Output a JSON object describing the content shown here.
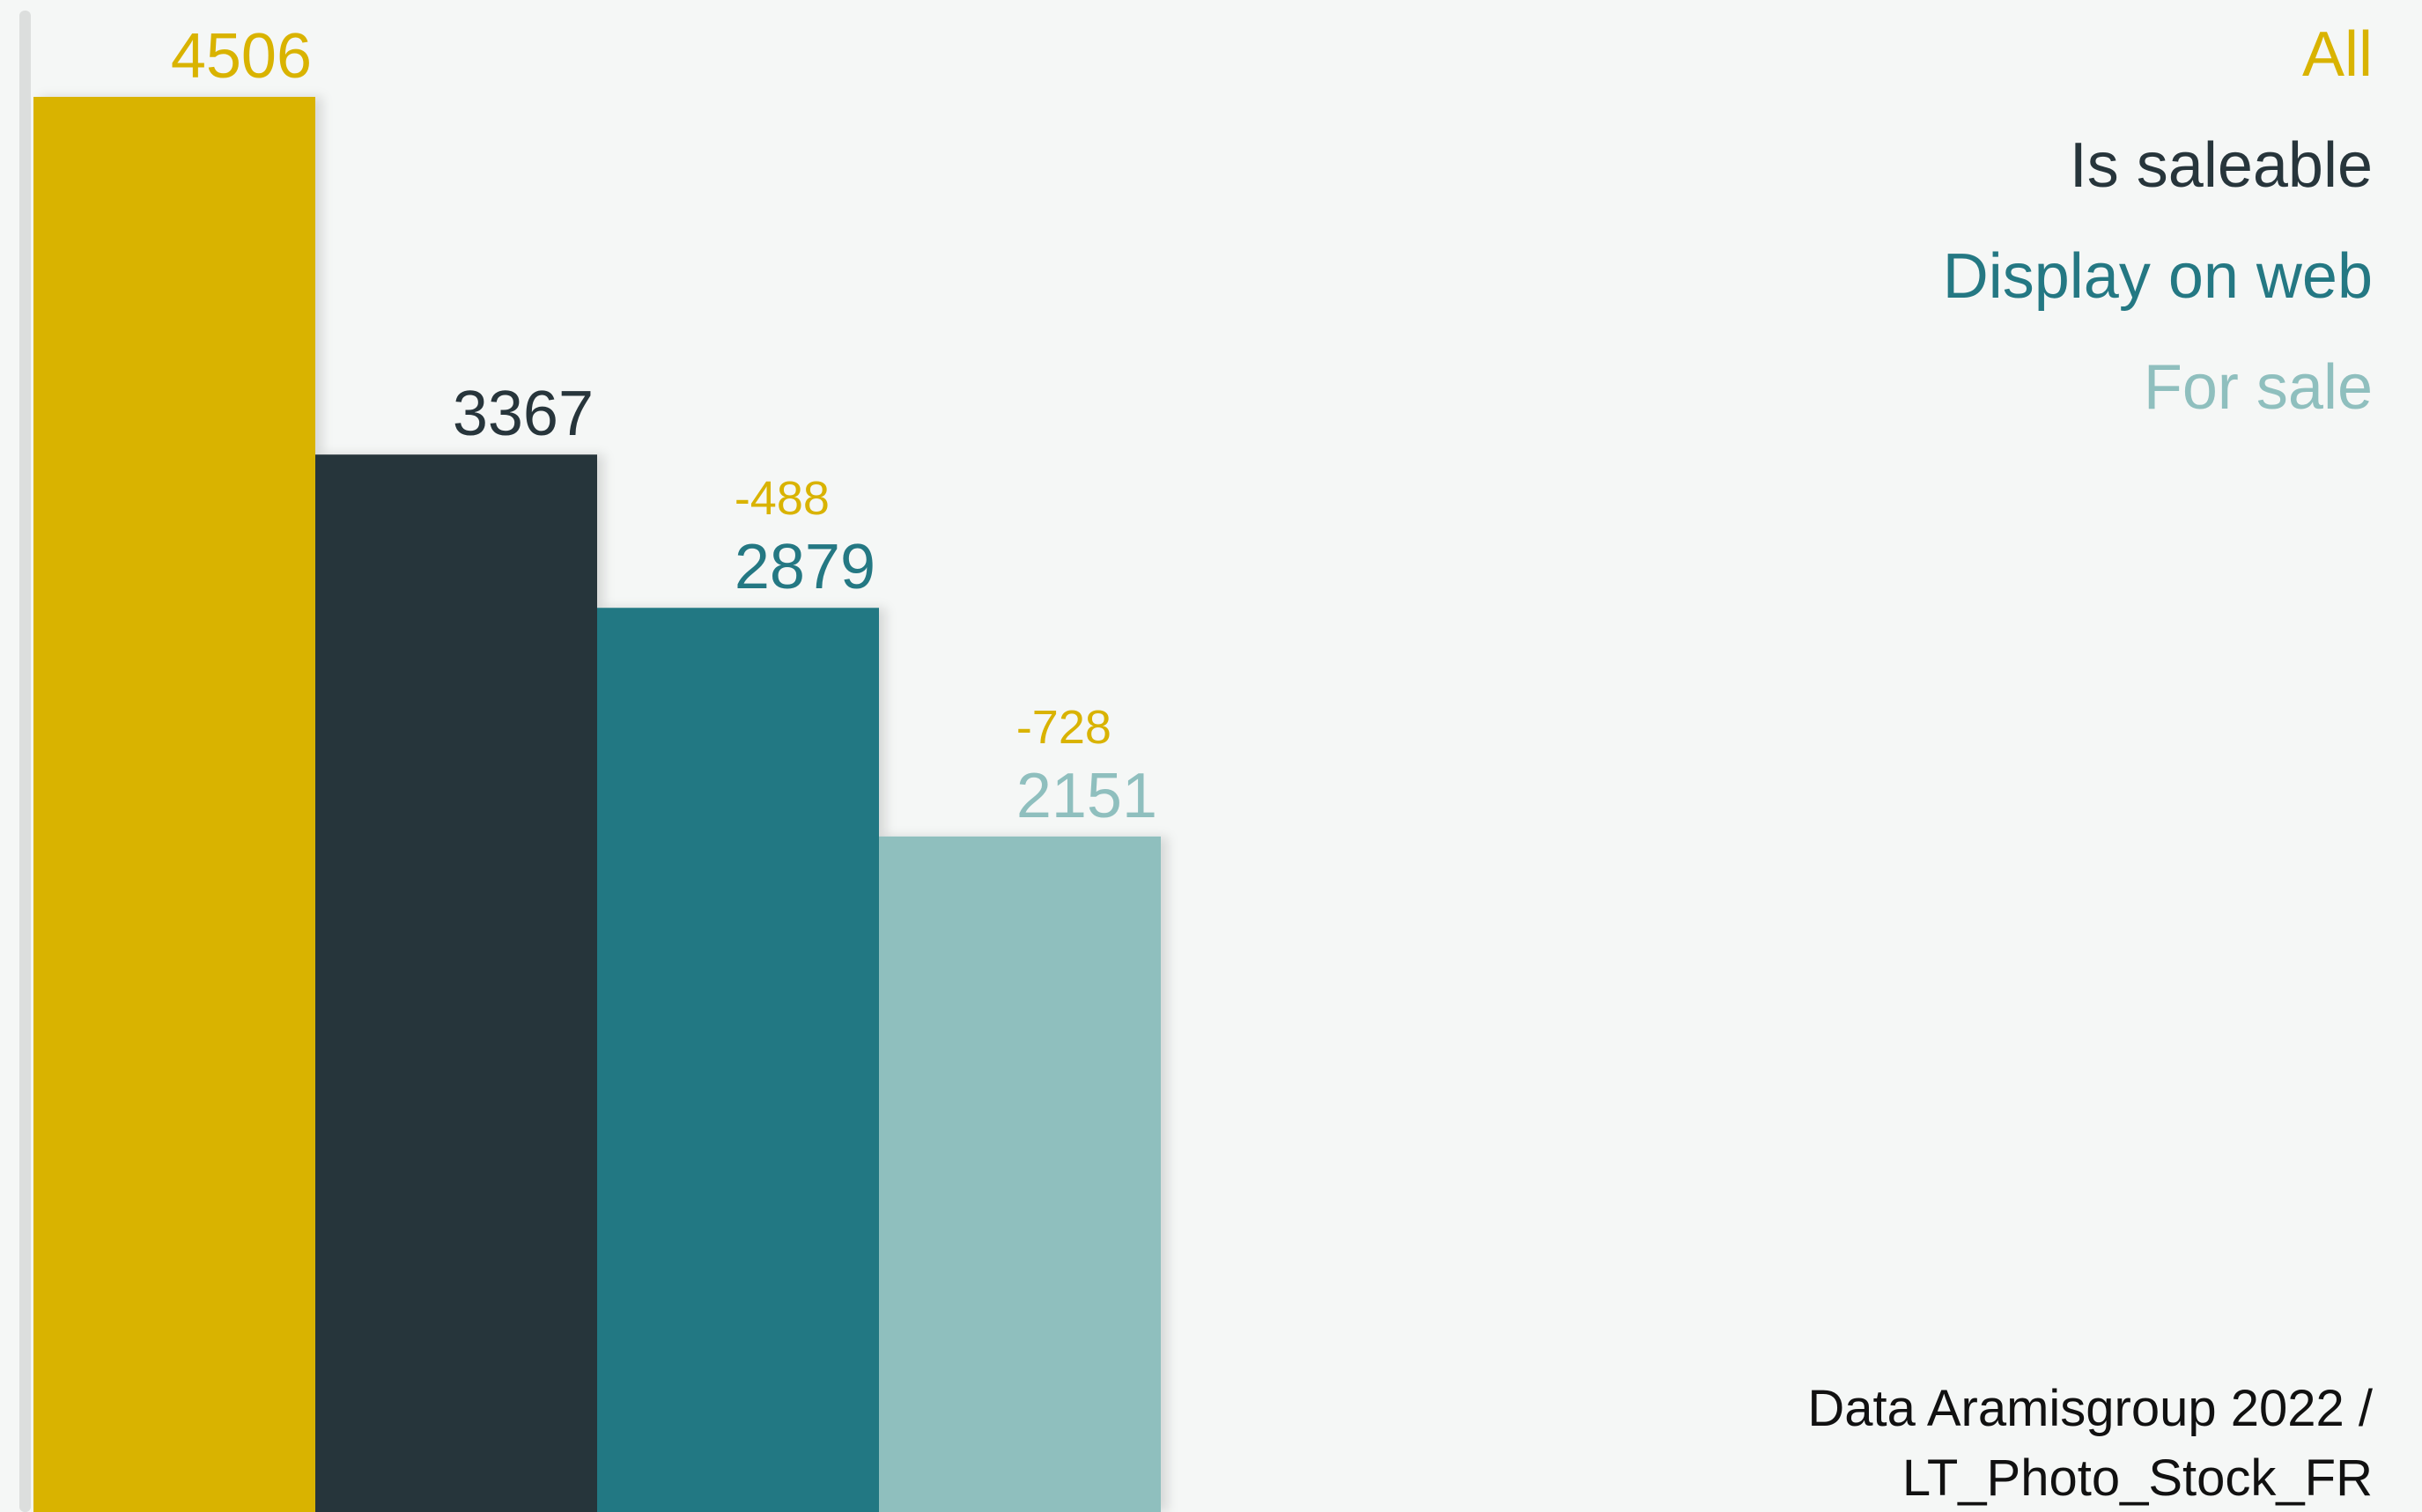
{
  "chart_data": {
    "type": "bar",
    "categories": [
      "All",
      "Is saleable",
      "Display on web",
      "For sale"
    ],
    "values": [
      4506,
      3367,
      2879,
      2151
    ],
    "colors": [
      "#d9b300",
      "#27353b",
      "#247883",
      "#8fbfbe"
    ],
    "differences": [
      null,
      null,
      -488,
      -728
    ],
    "difference_color": "#d9b300",
    "legend": "upper right",
    "source": [
      "Data Aramisgroup 2022 /",
      "LT_Photo_Stock_FR"
    ]
  }
}
